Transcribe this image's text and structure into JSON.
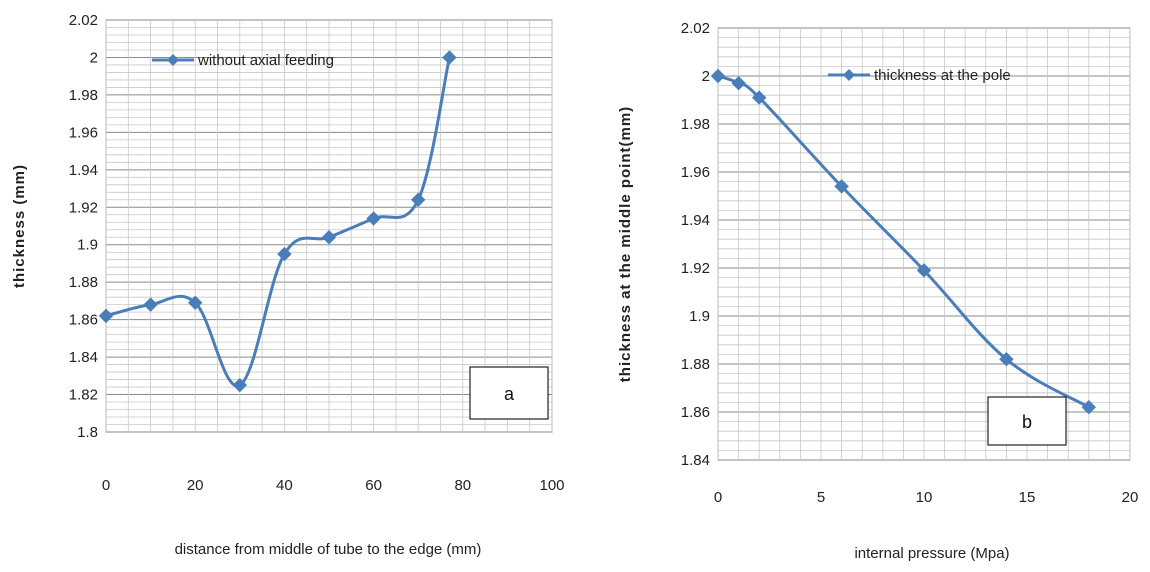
{
  "series_color": "#4a7ebb",
  "chart_data": [
    {
      "type": "line",
      "panel_label": "a",
      "xlabel": "distance from middle of tube to the edge (mm)",
      "ylabel": "thickness (mm)",
      "xlim": [
        0,
        100
      ],
      "ylim": [
        1.8,
        2.02
      ],
      "xticks": [
        "0",
        "20",
        "40",
        "60",
        "80",
        "100"
      ],
      "yticks": [
        "1.8",
        "1.82",
        "1.84",
        "1.86",
        "1.88",
        "1.9",
        "1.92",
        "1.94",
        "1.96",
        "1.98",
        "2",
        "2.02"
      ],
      "grid": true,
      "legend_position": "top-left",
      "series": [
        {
          "name": "without axial feeding",
          "x": [
            0,
            10,
            20,
            30,
            40,
            50,
            60,
            70,
            77
          ],
          "y": [
            1.862,
            1.868,
            1.869,
            1.825,
            1.895,
            1.904,
            1.914,
            1.924,
            2.0
          ]
        }
      ]
    },
    {
      "type": "line",
      "panel_label": "b",
      "xlabel": "internal pressure (Mpa)",
      "ylabel": "thickness at the middle point(mm)",
      "xlim": [
        0,
        20
      ],
      "ylim": [
        1.84,
        2.02
      ],
      "xticks": [
        "0",
        "5",
        "10",
        "15",
        "20"
      ],
      "yticks": [
        "1.84",
        "1.86",
        "1.88",
        "1.9",
        "1.92",
        "1.94",
        "1.96",
        "1.98",
        "2",
        "2.02"
      ],
      "grid": true,
      "legend_position": "top-right",
      "series": [
        {
          "name": "thickness at the pole",
          "x": [
            0,
            1,
            2,
            6,
            10,
            14,
            18
          ],
          "y": [
            2.0,
            1.997,
            1.991,
            1.954,
            1.919,
            1.882,
            1.862
          ]
        }
      ]
    }
  ]
}
